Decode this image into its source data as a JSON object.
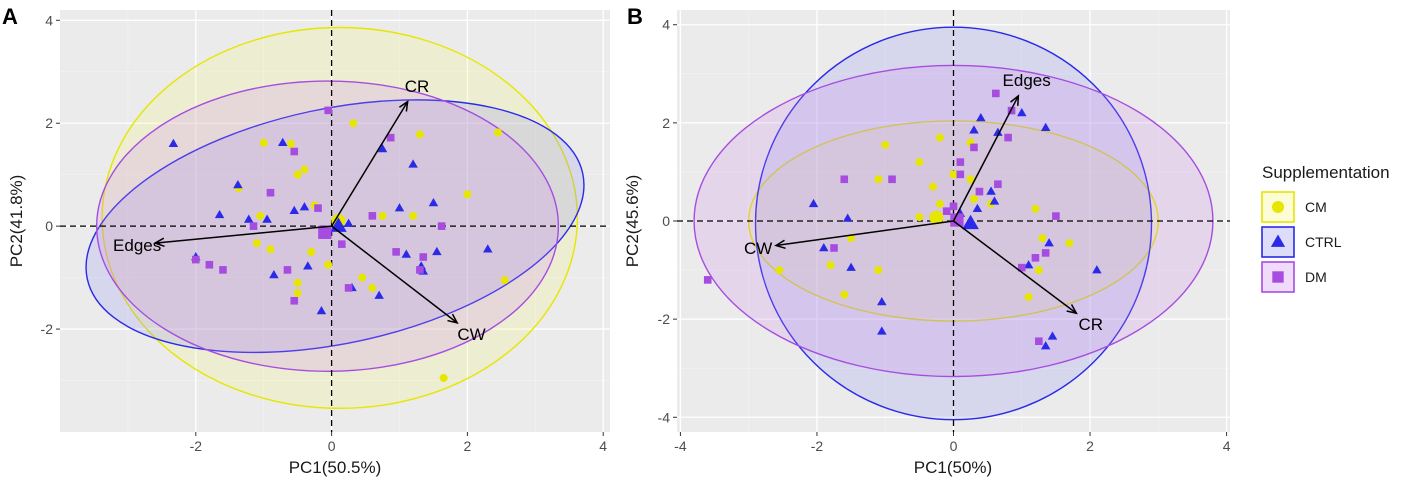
{
  "figure": {
    "legend_title": "Supplementation",
    "groups": [
      {
        "name": "CM",
        "color": "#e6e600",
        "fill": "#f5f57a",
        "shape": "circle"
      },
      {
        "name": "CTRL",
        "color": "#2a2ae8",
        "fill": "#8d8df0",
        "shape": "triangle"
      },
      {
        "name": "DM",
        "color": "#a64de0",
        "fill": "#cc88ee",
        "shape": "square"
      }
    ]
  },
  "chart_data": [
    {
      "type": "scatter",
      "panel_label": "A",
      "xlabel": "PC1(50.5%)",
      "ylabel": "PC2(41.8%)",
      "xlim": [
        -4.0,
        4.1
      ],
      "ylim": [
        -4.0,
        4.2
      ],
      "xticks": [
        -2,
        0,
        2,
        4
      ],
      "yticks": [
        -2,
        0,
        2,
        4
      ],
      "xtick_labels": [
        "-2",
        "0",
        "2",
        "4"
      ],
      "ytick_labels": [
        "-2",
        "0",
        "2",
        "4"
      ],
      "loadings": [
        {
          "label": "CR",
          "x": 1.12,
          "y": 2.42
        },
        {
          "label": "Edges",
          "x": -2.6,
          "y": -0.33
        },
        {
          "label": "CW",
          "x": 1.85,
          "y": -1.88
        }
      ],
      "ellipses": [
        {
          "group": "CM",
          "cx": 0.12,
          "cy": 0.16,
          "rx": 3.5,
          "ry": 3.7,
          "angle": 0
        },
        {
          "group": "CTRL",
          "cx": 0.05,
          "cy": 0.0,
          "rx": 3.73,
          "ry": 2.28,
          "angle": -12
        },
        {
          "group": "DM",
          "cx": -0.06,
          "cy": 0.0,
          "rx": 3.4,
          "ry": 2.82,
          "angle": 0
        }
      ],
      "centroids": [
        {
          "group": "CM",
          "x": 0.1,
          "y": 0.1
        },
        {
          "group": "CTRL",
          "x": 0.1,
          "y": 0.0
        },
        {
          "group": "DM",
          "x": -0.1,
          "y": -0.12
        }
      ],
      "points": {
        "CM": [
          [
            0.32,
            2.0
          ],
          [
            -1.0,
            1.62
          ],
          [
            -0.6,
            1.6
          ],
          [
            -0.4,
            1.1
          ],
          [
            -0.5,
            1.0
          ],
          [
            1.3,
            1.78
          ],
          [
            2.45,
            1.82
          ],
          [
            -1.37,
            0.74
          ],
          [
            -1.05,
            0.2
          ],
          [
            -0.25,
            0.4
          ],
          [
            0.75,
            0.2
          ],
          [
            1.2,
            0.2
          ],
          [
            2.0,
            0.62
          ],
          [
            -1.1,
            -0.33
          ],
          [
            -0.9,
            -0.45
          ],
          [
            -0.5,
            -1.1
          ],
          [
            -0.3,
            -0.5
          ],
          [
            -0.05,
            -0.75
          ],
          [
            0.45,
            -1.0
          ],
          [
            0.6,
            -1.2
          ],
          [
            -0.5,
            -1.3
          ],
          [
            1.65,
            -2.95
          ],
          [
            2.55,
            -1.05
          ]
        ],
        "CTRL": [
          [
            -2.33,
            1.6
          ],
          [
            -0.72,
            1.62
          ],
          [
            -1.38,
            0.8
          ],
          [
            -0.55,
            0.3
          ],
          [
            0.75,
            1.5
          ],
          [
            1.2,
            1.2
          ],
          [
            1.5,
            0.45
          ],
          [
            -1.65,
            0.22
          ],
          [
            -1.22,
            0.13
          ],
          [
            -0.95,
            0.13
          ],
          [
            -0.4,
            0.37
          ],
          [
            0.25,
            0.05
          ],
          [
            1.0,
            0.35
          ],
          [
            -2.0,
            -0.6
          ],
          [
            -0.85,
            -0.95
          ],
          [
            -0.35,
            -0.78
          ],
          [
            -0.15,
            -1.65
          ],
          [
            0.3,
            -1.2
          ],
          [
            0.7,
            -1.35
          ],
          [
            1.1,
            -0.55
          ],
          [
            1.35,
            -0.88
          ],
          [
            1.55,
            -0.5
          ],
          [
            2.3,
            -0.45
          ],
          [
            1.32,
            -0.78
          ]
        ],
        "DM": [
          [
            -0.05,
            2.25
          ],
          [
            0.87,
            1.72
          ],
          [
            -0.55,
            1.45
          ],
          [
            -0.9,
            0.65
          ],
          [
            -1.15,
            0.0
          ],
          [
            -0.2,
            0.35
          ],
          [
            0.6,
            0.2
          ],
          [
            1.62,
            0.0
          ],
          [
            -2.0,
            -0.65
          ],
          [
            -1.8,
            -0.75
          ],
          [
            -1.6,
            -0.85
          ],
          [
            -0.65,
            -0.85
          ],
          [
            -0.55,
            -1.45
          ],
          [
            0.15,
            -0.35
          ],
          [
            0.25,
            -1.2
          ],
          [
            0.95,
            -0.5
          ],
          [
            1.35,
            -0.6
          ],
          [
            1.3,
            -0.85
          ]
        ]
      }
    },
    {
      "type": "scatter",
      "panel_label": "B",
      "xlabel": "PC1(50%)",
      "ylabel": "PC2(45.6%)",
      "xlim": [
        -4.05,
        4.05
      ],
      "ylim": [
        -4.3,
        4.3
      ],
      "xticks": [
        -4,
        -2,
        0,
        2,
        4
      ],
      "yticks": [
        -4,
        -2,
        0,
        2,
        4
      ],
      "xtick_labels": [
        "-4",
        "-2",
        "0",
        "2",
        "4"
      ],
      "ytick_labels": [
        "-4",
        "-2",
        "0",
        "2",
        "4"
      ],
      "loadings": [
        {
          "label": "Edges",
          "x": 0.95,
          "y": 2.55
        },
        {
          "label": "CW",
          "x": -2.6,
          "y": -0.5
        },
        {
          "label": "CR",
          "x": 1.8,
          "y": -1.88
        }
      ],
      "ellipses": [
        {
          "group": "CM",
          "cx": 0.0,
          "cy": 0.0,
          "rx": 3.0,
          "ry": 2.04,
          "angle": 0
        },
        {
          "group": "CTRL",
          "cx": 0.0,
          "cy": -0.05,
          "rx": 2.9,
          "ry": 4.0,
          "angle": 0
        },
        {
          "group": "DM",
          "cx": 0.0,
          "cy": 0.0,
          "rx": 3.8,
          "ry": 3.17,
          "angle": 0
        }
      ],
      "centroids": [
        {
          "group": "CM",
          "x": -0.25,
          "y": 0.07
        },
        {
          "group": "CTRL",
          "x": 0.25,
          "y": -0.05
        },
        {
          "group": "DM",
          "x": 0.05,
          "y": 0.02
        }
      ],
      "points": {
        "CM": [
          [
            0.0,
            0.95
          ],
          [
            -0.2,
            1.7
          ],
          [
            0.25,
            1.6
          ],
          [
            -0.5,
            1.2
          ],
          [
            -0.3,
            0.7
          ],
          [
            -1.0,
            1.55
          ],
          [
            -1.1,
            0.85
          ],
          [
            -0.2,
            0.35
          ],
          [
            -0.5,
            0.08
          ],
          [
            0.25,
            0.85
          ],
          [
            0.3,
            0.45
          ],
          [
            0.55,
            0.35
          ],
          [
            1.2,
            0.25
          ],
          [
            1.7,
            -0.45
          ],
          [
            -1.5,
            -0.35
          ],
          [
            -1.8,
            -0.9
          ],
          [
            -2.55,
            -1.0
          ],
          [
            -1.1,
            -1.0
          ],
          [
            -1.6,
            -1.5
          ],
          [
            1.1,
            -1.55
          ],
          [
            1.25,
            -1.0
          ],
          [
            1.3,
            -0.35
          ]
        ],
        "CTRL": [
          [
            1.0,
            2.2
          ],
          [
            0.4,
            2.1
          ],
          [
            0.3,
            1.85
          ],
          [
            0.65,
            1.8
          ],
          [
            1.35,
            1.9
          ],
          [
            0.55,
            0.6
          ],
          [
            0.6,
            0.4
          ],
          [
            0.35,
            0.25
          ],
          [
            0.1,
            0.15
          ],
          [
            -2.05,
            0.35
          ],
          [
            -1.55,
            0.05
          ],
          [
            -1.9,
            -0.55
          ],
          [
            -1.5,
            -0.95
          ],
          [
            -1.05,
            -1.65
          ],
          [
            -1.05,
            -2.25
          ],
          [
            1.4,
            -0.45
          ],
          [
            1.1,
            -0.9
          ],
          [
            2.1,
            -1.0
          ],
          [
            1.45,
            -2.35
          ],
          [
            1.35,
            -2.55
          ]
        ],
        "DM": [
          [
            0.62,
            2.6
          ],
          [
            0.85,
            2.25
          ],
          [
            0.8,
            1.7
          ],
          [
            0.3,
            1.5
          ],
          [
            0.1,
            1.2
          ],
          [
            0.1,
            0.95
          ],
          [
            0.38,
            0.6
          ],
          [
            0.65,
            0.75
          ],
          [
            0.0,
            0.3
          ],
          [
            -1.6,
            0.85
          ],
          [
            -0.9,
            0.85
          ],
          [
            -0.1,
            0.2
          ],
          [
            -1.75,
            -0.55
          ],
          [
            -3.6,
            -1.2
          ],
          [
            1.5,
            0.1
          ],
          [
            1.35,
            -0.65
          ],
          [
            1.2,
            -0.75
          ],
          [
            1.0,
            -0.95
          ],
          [
            1.25,
            -2.45
          ]
        ]
      }
    }
  ]
}
